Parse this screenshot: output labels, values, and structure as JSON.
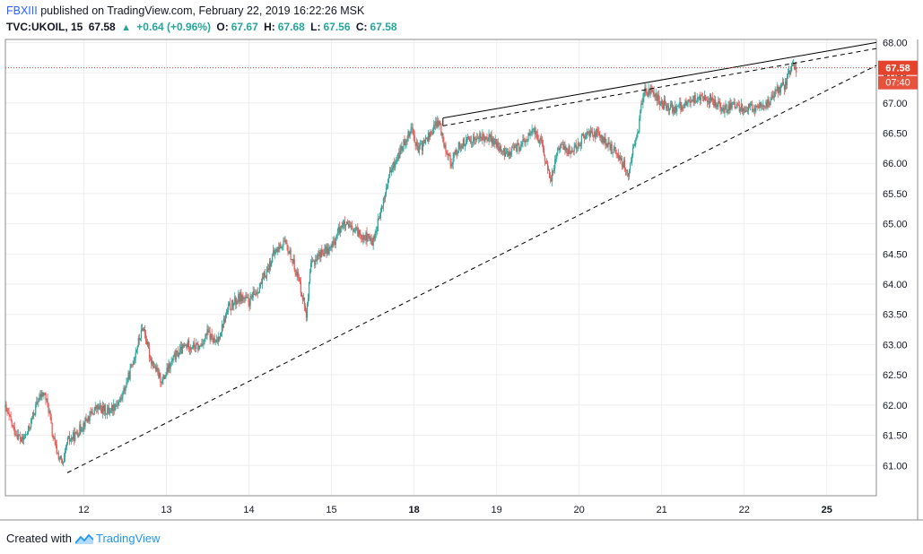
{
  "header": {
    "line1_user": "FBXIII",
    "line1_rest": "published on TradingView.com, February 22, 2019 16:22:26 MSK",
    "symbol": "TVC:UKOIL, 15",
    "last": "67.58",
    "change": "+0.64 (+0.96%)",
    "o_label": "O:",
    "o_val": "67.67",
    "h_label": "H:",
    "h_val": "67.68",
    "l_label": "L:",
    "l_val": "67.56",
    "c_label": "C:",
    "c_val": "67.58"
  },
  "footer": {
    "created_with": "Created with",
    "brand": "TradingView"
  },
  "colors": {
    "up": "#26a69a",
    "down": "#ef5350",
    "price_tag": "#e5432c",
    "trend": "#000000",
    "grid": "#eeeeee",
    "bg": "#ffffff"
  },
  "chart_data": {
    "type": "candlestick",
    "symbol": "TVC:UKOIL",
    "interval": "15",
    "x_ticks": [
      {
        "label": "12",
        "x": 12,
        "bold": false
      },
      {
        "label": "13",
        "x": 13,
        "bold": false
      },
      {
        "label": "14",
        "x": 14,
        "bold": false
      },
      {
        "label": "15",
        "x": 15,
        "bold": false
      },
      {
        "label": "18",
        "x": 16,
        "bold": true
      },
      {
        "label": "19",
        "x": 17,
        "bold": false
      },
      {
        "label": "20",
        "x": 18,
        "bold": false
      },
      {
        "label": "21",
        "x": 19,
        "bold": false
      },
      {
        "label": "22",
        "x": 20,
        "bold": false
      },
      {
        "label": "25",
        "x": 21,
        "bold": true
      }
    ],
    "xlim": [
      11.05,
      21.6
    ],
    "ylim": [
      60.5,
      68.05
    ],
    "y_ticks": [
      "61.00",
      "61.50",
      "62.00",
      "62.50",
      "63.00",
      "63.50",
      "64.00",
      "64.50",
      "65.00",
      "65.50",
      "66.00",
      "66.50",
      "67.00",
      "67.50",
      "68.00"
    ],
    "grid": true,
    "last_price_label": "67.58",
    "last_price": 67.58,
    "countdown_label": "07:40",
    "price_path": [
      [
        11.05,
        61.95
      ],
      [
        11.15,
        61.6
      ],
      [
        11.25,
        61.4
      ],
      [
        11.32,
        61.55
      ],
      [
        11.45,
        62.1
      ],
      [
        11.52,
        62.2
      ],
      [
        11.58,
        61.9
      ],
      [
        11.62,
        61.5
      ],
      [
        11.68,
        61.2
      ],
      [
        11.75,
        61.0
      ],
      [
        11.8,
        61.4
      ],
      [
        11.9,
        61.5
      ],
      [
        12.0,
        61.7
      ],
      [
        12.15,
        61.95
      ],
      [
        12.3,
        61.9
      ],
      [
        12.45,
        62.1
      ],
      [
        12.55,
        62.5
      ],
      [
        12.65,
        63.0
      ],
      [
        12.72,
        63.3
      ],
      [
        12.8,
        62.8
      ],
      [
        12.9,
        62.5
      ],
      [
        12.95,
        62.4
      ],
      [
        13.1,
        62.8
      ],
      [
        13.25,
        63.0
      ],
      [
        13.4,
        62.95
      ],
      [
        13.5,
        63.2
      ],
      [
        13.6,
        63.0
      ],
      [
        13.75,
        63.6
      ],
      [
        13.9,
        63.8
      ],
      [
        14.0,
        63.7
      ],
      [
        14.15,
        64.0
      ],
      [
        14.3,
        64.5
      ],
      [
        14.42,
        64.7
      ],
      [
        14.5,
        64.5
      ],
      [
        14.6,
        64.1
      ],
      [
        14.7,
        63.5
      ],
      [
        14.75,
        64.3
      ],
      [
        14.85,
        64.5
      ],
      [
        15.0,
        64.6
      ],
      [
        15.12,
        65.0
      ],
      [
        15.25,
        64.9
      ],
      [
        15.4,
        64.8
      ],
      [
        15.5,
        64.7
      ],
      [
        15.6,
        65.2
      ],
      [
        15.7,
        65.8
      ],
      [
        15.8,
        66.1
      ],
      [
        15.9,
        66.4
      ],
      [
        15.97,
        66.6
      ],
      [
        16.05,
        66.2
      ],
      [
        16.2,
        66.5
      ],
      [
        16.3,
        66.7
      ],
      [
        16.35,
        66.4
      ],
      [
        16.45,
        66.0
      ],
      [
        16.55,
        66.3
      ],
      [
        16.7,
        66.4
      ],
      [
        16.9,
        66.45
      ],
      [
        17.1,
        66.15
      ],
      [
        17.3,
        66.3
      ],
      [
        17.45,
        66.55
      ],
      [
        17.55,
        66.3
      ],
      [
        17.65,
        65.7
      ],
      [
        17.75,
        66.3
      ],
      [
        17.9,
        66.2
      ],
      [
        18.0,
        66.35
      ],
      [
        18.1,
        66.5
      ],
      [
        18.2,
        66.5
      ],
      [
        18.35,
        66.3
      ],
      [
        18.5,
        66.1
      ],
      [
        18.6,
        65.8
      ],
      [
        18.65,
        66.2
      ],
      [
        18.72,
        66.6
      ],
      [
        18.78,
        67.2
      ],
      [
        18.9,
        67.15
      ],
      [
        19.0,
        67.0
      ],
      [
        19.15,
        66.9
      ],
      [
        19.3,
        67.0
      ],
      [
        19.45,
        67.1
      ],
      [
        19.6,
        67.05
      ],
      [
        19.75,
        66.9
      ],
      [
        19.9,
        66.95
      ],
      [
        20.1,
        66.9
      ],
      [
        20.3,
        67.0
      ],
      [
        20.4,
        67.2
      ],
      [
        20.5,
        67.3
      ],
      [
        20.55,
        67.5
      ],
      [
        20.6,
        67.62
      ],
      [
        20.63,
        67.58
      ]
    ],
    "trendlines": [
      {
        "name": "resistance-solid",
        "style": "solid",
        "points": [
          [
            16.35,
            66.75
          ],
          [
            21.6,
            68.0
          ]
        ]
      },
      {
        "name": "resistance-dashed",
        "style": "dashed",
        "points": [
          [
            16.35,
            66.62
          ],
          [
            21.6,
            67.9
          ]
        ]
      },
      {
        "name": "support-dashed",
        "style": "dashed",
        "points": [
          [
            11.8,
            60.88
          ],
          [
            21.6,
            67.62
          ]
        ]
      },
      {
        "name": "high-link-solid",
        "style": "solid",
        "points": [
          [
            16.35,
            66.75
          ],
          [
            16.35,
            66.62
          ]
        ]
      }
    ]
  }
}
